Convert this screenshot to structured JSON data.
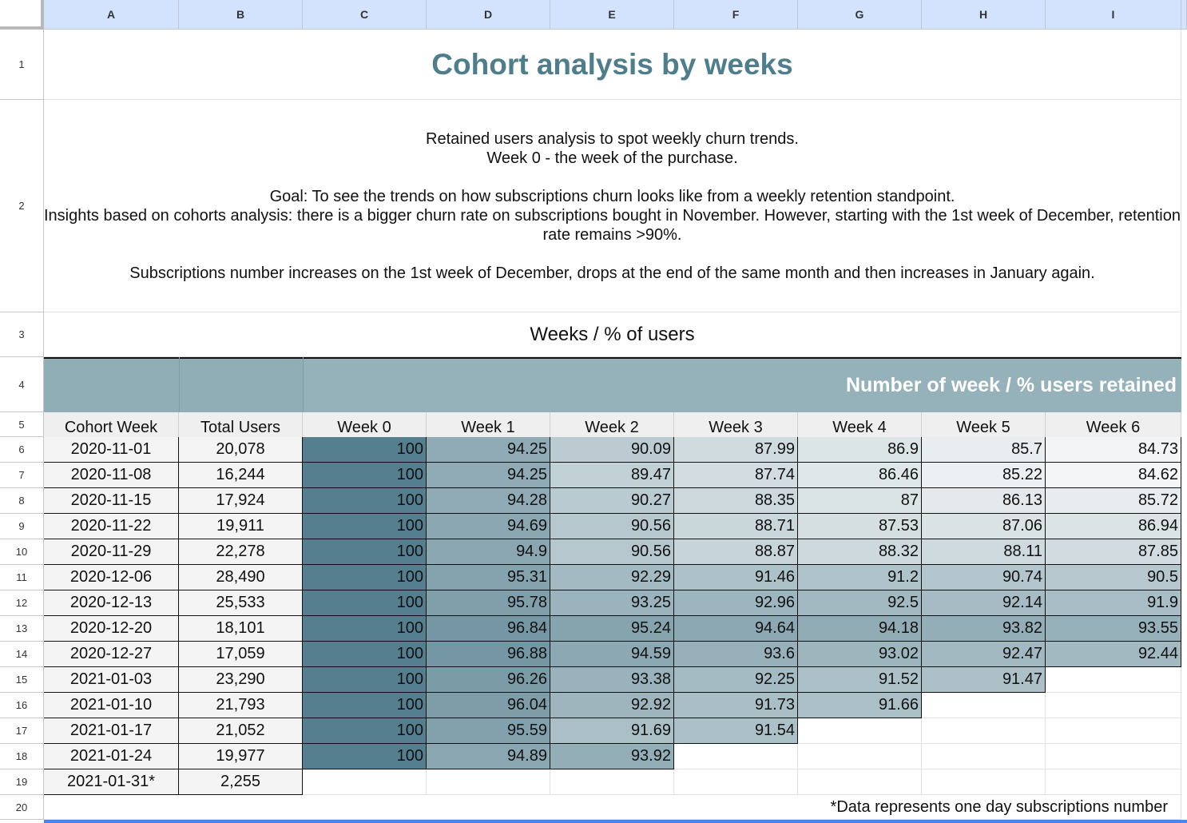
{
  "columns": [
    "A",
    "B",
    "C",
    "D",
    "E",
    "F",
    "G",
    "H",
    "I"
  ],
  "rows": [
    "1",
    "2",
    "3",
    "4",
    "5",
    "6",
    "7",
    "8",
    "9",
    "10",
    "11",
    "12",
    "13",
    "14",
    "15",
    "16",
    "17",
    "18",
    "19",
    "20"
  ],
  "title": "Cohort analysis by weeks",
  "description": "Retained users analysis to spot weekly churn trends.\nWeek 0 - the week of the purchase.\n\nGoal: To see the trends on how subscriptions churn looks like from a weekly retention standpoint.\nInsights based on cohorts analysis: there is a bigger churn rate on subscriptions bought in November. However, starting with the 1st week of December, retention rate remains >90%.\n\nSubscriptions number increases on the 1st week of December, drops at the end of the same month and then increases in January again.",
  "subtitle": "Weeks / % of users",
  "band_label": "Number of week / % users retained",
  "headers": [
    "Cohort Week",
    "Total Users",
    "Week 0",
    "Week 1",
    "Week 2",
    "Week 3",
    "Week 4",
    "Week 5",
    "Week 6"
  ],
  "colors": {
    "header_blue": "#d3e3fd",
    "title_teal": "#4e7d8c",
    "band": "#8faeb6",
    "cell_dark": "#557f8e",
    "cell_light": "#f4f6f7"
  },
  "table": [
    {
      "cohort": "2020-11-01",
      "users": "20,078",
      "weeks": [
        "100",
        "94.25",
        "90.09",
        "87.99",
        "86.9",
        "85.7",
        "84.73"
      ]
    },
    {
      "cohort": "2020-11-08",
      "users": "16,244",
      "weeks": [
        "100",
        "94.25",
        "89.47",
        "87.74",
        "86.46",
        "85.22",
        "84.62"
      ]
    },
    {
      "cohort": "2020-11-15",
      "users": "17,924",
      "weeks": [
        "100",
        "94.28",
        "90.27",
        "88.35",
        "87",
        "86.13",
        "85.72"
      ]
    },
    {
      "cohort": "2020-11-22",
      "users": "19,911",
      "weeks": [
        "100",
        "94.69",
        "90.56",
        "88.71",
        "87.53",
        "87.06",
        "86.94"
      ]
    },
    {
      "cohort": "2020-11-29",
      "users": "22,278",
      "weeks": [
        "100",
        "94.9",
        "90.56",
        "88.87",
        "88.32",
        "88.11",
        "87.85"
      ]
    },
    {
      "cohort": "2020-12-06",
      "users": "28,490",
      "weeks": [
        "100",
        "95.31",
        "92.29",
        "91.46",
        "91.2",
        "90.74",
        "90.5"
      ]
    },
    {
      "cohort": "2020-12-13",
      "users": "25,533",
      "weeks": [
        "100",
        "95.78",
        "93.25",
        "92.96",
        "92.5",
        "92.14",
        "91.9"
      ]
    },
    {
      "cohort": "2020-12-20",
      "users": "18,101",
      "weeks": [
        "100",
        "96.84",
        "95.24",
        "94.64",
        "94.18",
        "93.82",
        "93.55"
      ]
    },
    {
      "cohort": "2020-12-27",
      "users": "17,059",
      "weeks": [
        "100",
        "96.88",
        "94.59",
        "93.6",
        "93.02",
        "92.47",
        "92.44"
      ]
    },
    {
      "cohort": "2021-01-03",
      "users": "23,290",
      "weeks": [
        "100",
        "96.26",
        "93.38",
        "92.25",
        "91.52",
        "91.47"
      ]
    },
    {
      "cohort": "2021-01-10",
      "users": "21,793",
      "weeks": [
        "100",
        "96.04",
        "92.92",
        "91.73",
        "91.66"
      ]
    },
    {
      "cohort": "2021-01-17",
      "users": "21,052",
      "weeks": [
        "100",
        "95.59",
        "91.69",
        "91.54"
      ]
    },
    {
      "cohort": "2021-01-24",
      "users": "19,977",
      "weeks": [
        "100",
        "94.89",
        "93.92"
      ]
    },
    {
      "cohort": "2021-01-31*",
      "users": "2,255",
      "weeks": []
    }
  ],
  "footnote": "*Data represents one day subscriptions number"
}
